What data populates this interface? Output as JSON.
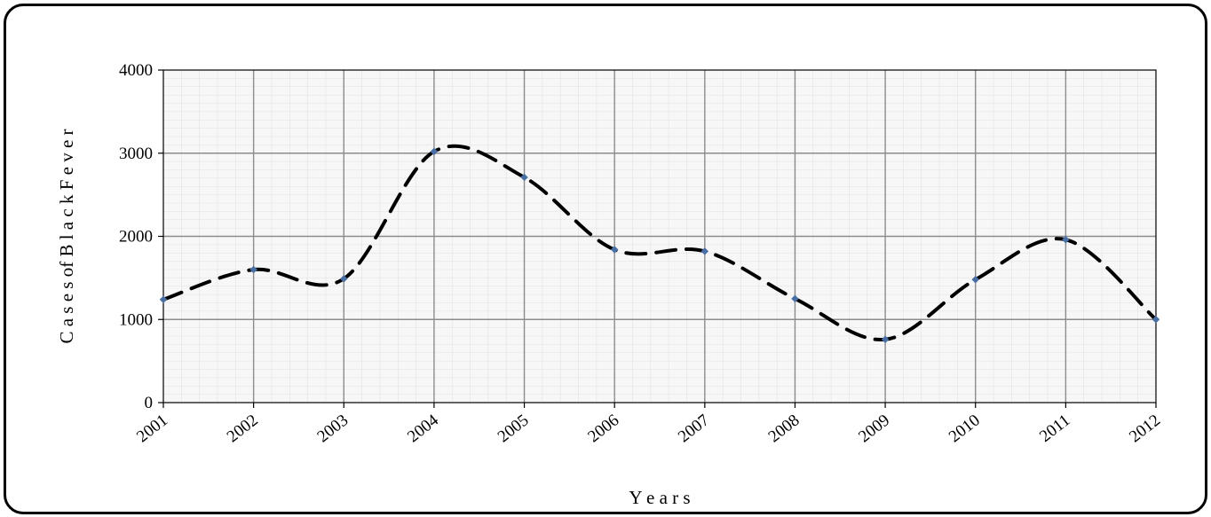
{
  "chart_data": {
    "type": "line",
    "title": "",
    "xlabel": "Y e a r s",
    "ylabel": "C a s e s  of  B l a c k  F e v e r",
    "categories": [
      "2001",
      "2002",
      "2003",
      "2004",
      "2005",
      "2006",
      "2007",
      "2008",
      "2009",
      "2010",
      "2011",
      "2012"
    ],
    "series": [
      {
        "values": [
          1240,
          1600,
          1490,
          3020,
          2710,
          1840,
          1820,
          1250,
          760,
          1480,
          1960,
          1000
        ]
      }
    ],
    "ylim": [
      0,
      4000
    ],
    "yticks": [
      "0",
      "1000",
      "2000",
      "3000",
      "4000"
    ],
    "grid": true,
    "line_style": "dashed",
    "smoothed": true,
    "colors": {
      "line": "#000000",
      "marker": "#4a6fa5",
      "grid_major": "#8c8c8c",
      "grid_minor": "#e2e2e2",
      "plot_bg": "#f7f7f7"
    }
  }
}
